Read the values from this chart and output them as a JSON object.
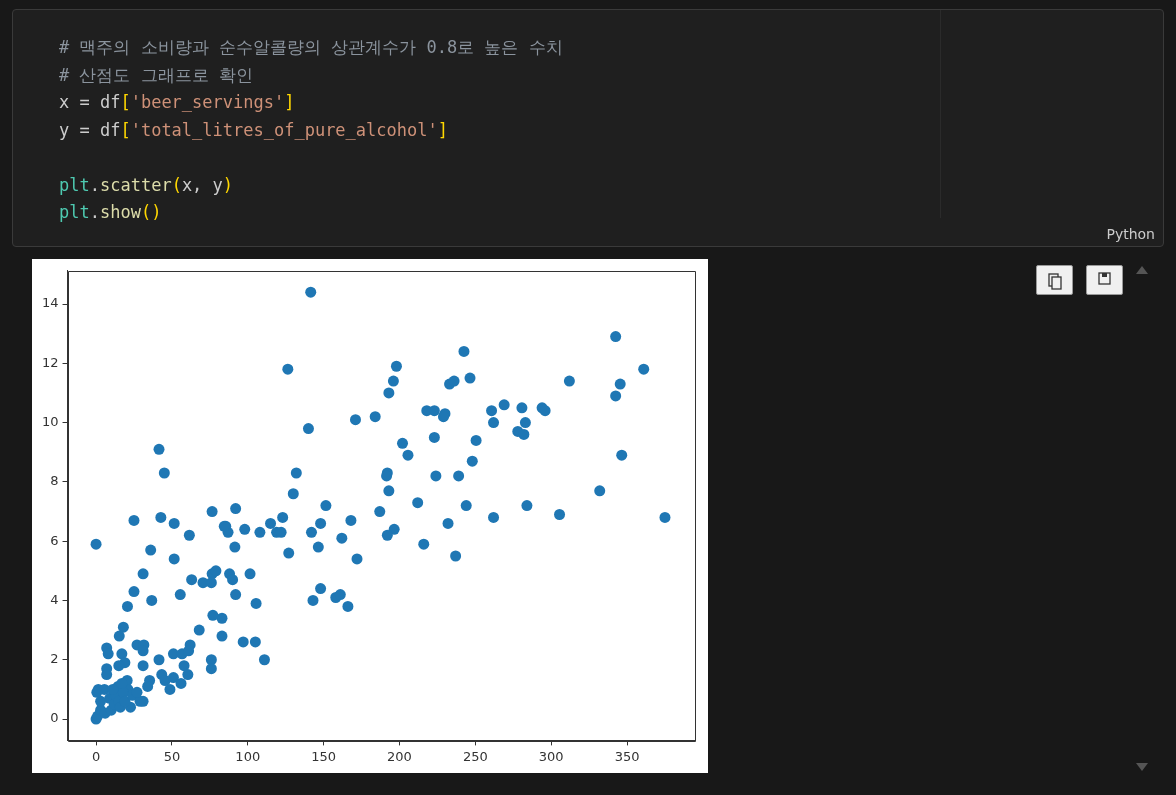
{
  "chart_data": {
    "type": "scatter",
    "annotations": [
      "# 맥주의 소비량과 순수알콜량의 상관계수가 0.8로 높은 수치",
      "# 산점도 그래프로 확인",
      "x = df['beer_servings']",
      "y = df['total_litres_of_pure_alcohol']",
      "plt.scatter(x, y)",
      "plt.show()",
      "Python"
    ],
    "series": [
      {
        "color": "#1f77b4",
        "x": [
          141.5,
          126.4,
          140,
          198,
          196,
          193,
          171,
          184,
          218,
          223,
          230,
          229,
          223,
          233,
          236,
          242.5,
          202,
          205.6,
          192,
          191.5,
          193,
          224,
          239,
          212,
          187,
          232,
          196.5,
          192,
          216,
          237,
          132,
          130,
          151.5,
          148,
          142,
          146.5,
          168,
          162,
          172,
          123,
          115,
          119,
          122,
          108,
          127,
          92,
          98,
          85.5,
          87,
          91.5,
          88,
          90,
          101.5,
          92,
          105.5,
          148,
          143,
          158,
          161,
          166,
          97,
          105,
          111,
          83,
          83,
          246.5,
          312,
          342.5,
          361,
          345.5,
          342.5,
          269,
          260.7,
          262,
          280.7,
          294,
          296,
          283,
          278,
          282,
          250.5,
          248,
          346.5,
          332,
          244,
          284,
          262,
          305.5,
          375,
          41.5,
          45,
          0,
          25,
          42.7,
          51.5,
          61.5,
          76.5,
          84.5,
          36,
          51.5,
          31,
          25,
          36.7,
          20.7,
          63,
          70.5,
          76,
          76.5,
          79,
          55.5,
          77,
          68,
          76,
          76,
          18,
          15.3,
          7,
          8,
          27,
          31.5,
          31,
          17,
          19,
          15,
          31,
          41.5,
          51,
          56.7,
          62,
          61,
          58,
          60.5,
          43.3,
          45.5,
          51,
          48.7,
          56,
          35.3,
          34,
          7,
          7,
          14.5,
          20.5,
          21,
          1.5,
          5.5,
          31,
          22.7,
          0,
          1,
          3,
          6,
          9,
          10,
          12,
          13,
          15,
          16,
          18,
          19,
          24,
          29,
          3,
          11,
          0.5,
          17,
          27
        ],
        "values": [
          14.4,
          11.8,
          9.8,
          11.9,
          11.4,
          11.0,
          10.1,
          10.2,
          10.4,
          10.4,
          10.3,
          10.2,
          9.5,
          11.3,
          11.4,
          12.4,
          9.3,
          8.9,
          8.3,
          8.2,
          7.7,
          8.2,
          8.2,
          7.3,
          7.0,
          6.6,
          6.4,
          6.2,
          5.9,
          5.5,
          8.3,
          7.6,
          7.2,
          6.6,
          6.3,
          5.8,
          6.7,
          6.1,
          5.4,
          6.8,
          6.6,
          6.3,
          6.3,
          6.3,
          5.6,
          7.1,
          6.4,
          6.5,
          6.3,
          5.8,
          4.9,
          4.7,
          4.9,
          4.2,
          3.9,
          4.4,
          4.0,
          4.1,
          4.2,
          3.8,
          2.6,
          2.6,
          2.0,
          3.4,
          2.8,
          11.5,
          11.4,
          12.9,
          11.8,
          11.3,
          10.9,
          10.6,
          10.4,
          10.0,
          10.5,
          10.5,
          10.4,
          10.0,
          9.7,
          9.6,
          9.4,
          8.7,
          8.9,
          7.7,
          7.2,
          7.2,
          6.8,
          6.9,
          6.8,
          9.1,
          8.3,
          5.9,
          6.7,
          6.8,
          6.6,
          6.2,
          7.0,
          6.5,
          5.7,
          5.4,
          4.9,
          4.3,
          4.0,
          3.8,
          4.7,
          4.6,
          4.6,
          4.9,
          5.0,
          4.2,
          3.5,
          3.0,
          2.0,
          1.7,
          3.1,
          2.8,
          2.4,
          2.2,
          2.5,
          2.5,
          2.3,
          2.2,
          1.9,
          1.8,
          1.8,
          2.0,
          2.2,
          2.2,
          2.5,
          2.3,
          1.8,
          1.5,
          1.5,
          1.3,
          1.4,
          1.0,
          1.2,
          1.3,
          1.1,
          1.7,
          1.5,
          1.1,
          1.3,
          1.0,
          1.0,
          1.0,
          0.6,
          0.4,
          0,
          0.1,
          0.3,
          0.2,
          0.7,
          0.3,
          0.5,
          0.8,
          0.6,
          0.4,
          0.9,
          0.6,
          0.8,
          0.6,
          0.6,
          1.0,
          0.9,
          1.2,
          0.9
        ]
      }
    ],
    "xlim": [
      -18.8,
      394.8
    ],
    "ylim": [
      -0.72,
      15.12
    ],
    "xticks": [
      0,
      50,
      100,
      150,
      200,
      250,
      300,
      350
    ],
    "yticks": [
      0,
      2,
      4,
      6,
      8,
      10,
      12,
      14
    ],
    "grid": false,
    "legend": false,
    "marker": "circle"
  }
}
